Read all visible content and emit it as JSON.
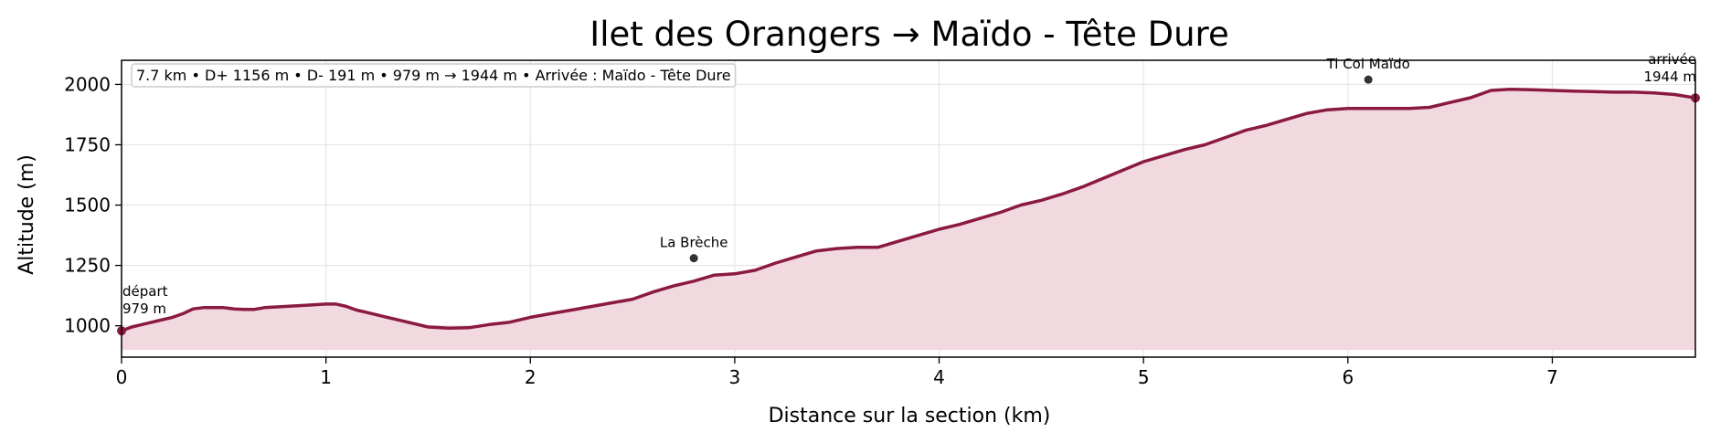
{
  "chart_data": {
    "type": "area",
    "title": "Ilet des Orangers → Maïdo - Tête Dure",
    "xlabel": "Distance sur la section (km)",
    "ylabel": "Altitude (m)",
    "xlim": [
      0,
      7.7
    ],
    "ylim": [
      870,
      2100
    ],
    "fill_base": 900,
    "xticks": [
      0,
      1,
      2,
      3,
      4,
      5,
      6,
      7
    ],
    "yticks": [
      1000,
      1250,
      1500,
      1750,
      2000
    ],
    "grid": true,
    "info_box": "7.7 km • D+ 1156 m • D- 191 m • 979 m → 1944 m • Arrivée : Maïdo - Tête Dure",
    "colors": {
      "line": "#8b1a42",
      "fill": "#f2d9e0",
      "poi": "#333333",
      "grid": "#e6e6e6"
    },
    "series": [
      {
        "x": [
          0,
          0.05,
          0.1,
          0.15,
          0.2,
          0.25,
          0.3,
          0.35,
          0.4,
          0.5,
          0.55,
          0.6,
          0.65,
          0.7,
          0.8,
          0.9,
          1.0,
          1.05,
          1.1,
          1.15,
          1.2,
          1.3,
          1.4,
          1.5,
          1.6,
          1.7,
          1.8,
          1.9,
          2.0,
          2.1,
          2.2,
          2.3,
          2.4,
          2.5,
          2.6,
          2.7,
          2.8,
          2.9,
          3.0,
          3.1,
          3.2,
          3.3,
          3.4,
          3.5,
          3.6,
          3.7,
          3.8,
          3.9,
          4.0,
          4.1,
          4.2,
          4.3,
          4.4,
          4.5,
          4.6,
          4.7,
          4.8,
          4.9,
          5.0,
          5.1,
          5.2,
          5.3,
          5.4,
          5.5,
          5.6,
          5.7,
          5.8,
          5.9,
          6.0,
          6.1,
          6.2,
          6.3,
          6.4,
          6.5,
          6.6,
          6.7,
          6.8,
          6.9,
          7.0,
          7.1,
          7.2,
          7.3,
          7.4,
          7.5,
          7.6,
          7.7
        ],
        "values": [
          979,
          995,
          1005,
          1015,
          1025,
          1035,
          1050,
          1070,
          1075,
          1075,
          1070,
          1068,
          1068,
          1075,
          1080,
          1085,
          1090,
          1090,
          1080,
          1065,
          1055,
          1035,
          1015,
          995,
          990,
          992,
          1005,
          1015,
          1035,
          1050,
          1065,
          1080,
          1095,
          1110,
          1140,
          1165,
          1185,
          1210,
          1215,
          1230,
          1260,
          1285,
          1310,
          1320,
          1325,
          1325,
          1350,
          1375,
          1400,
          1420,
          1445,
          1470,
          1500,
          1520,
          1545,
          1575,
          1610,
          1645,
          1680,
          1705,
          1730,
          1750,
          1780,
          1810,
          1830,
          1855,
          1880,
          1895,
          1900,
          1900,
          1900,
          1900,
          1905,
          1925,
          1945,
          1975,
          1980,
          1978,
          1975,
          1972,
          1970,
          1968,
          1968,
          1965,
          1958,
          1944
        ]
      }
    ],
    "endpoints": [
      {
        "x": 0,
        "y": 979,
        "label": "départ",
        "alt": "979 m"
      },
      {
        "x": 7.7,
        "y": 1944,
        "label": "arrivée",
        "alt": "1944 m"
      }
    ],
    "pois": [
      {
        "x": 2.8,
        "y": 1280,
        "label": "La Brèche"
      },
      {
        "x": 6.1,
        "y": 2020,
        "label": "Ti Col Maïdo"
      }
    ]
  }
}
